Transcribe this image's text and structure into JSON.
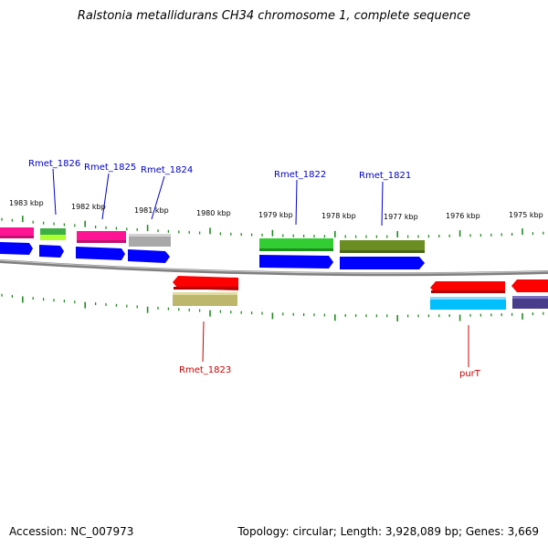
{
  "title": "Ralstonia metallidurans CH34 chromosome 1, complete sequence",
  "footer": {
    "accession": "Accession: NC_007973",
    "summary": "Topology: circular; Length: 3,928,089 bp; Genes: 3,669"
  },
  "scale_labels": [
    "1983 kbp",
    "1982 kbp",
    "1981 kbp",
    "1980 kbp",
    "1979 kbp",
    "1978 kbp",
    "1977 kbp",
    "1976 kbp",
    "1975 kbp"
  ],
  "gene_labels": {
    "forward": [
      "Rmet_1826",
      "Rmet_1825",
      "Rmet_1824",
      "Rmet_1822",
      "Rmet_1821"
    ],
    "reverse": [
      "Rmet_1823",
      "purT"
    ]
  },
  "colors": {
    "forward_label": "#0000cc",
    "reverse_label": "#cc0000",
    "tick": "#228b22",
    "backbone": "#808080",
    "cds_blue": "#0000ff",
    "cds_red": "#ff0000",
    "cds_cyan": "#00bfff",
    "pink": "#ff1493",
    "green": "#32cd32",
    "olive": "#6b8e23",
    "khaki": "#bdb76b",
    "gray": "#a9a9a9",
    "lime": "#adff2f",
    "purple": "#483d8b"
  }
}
